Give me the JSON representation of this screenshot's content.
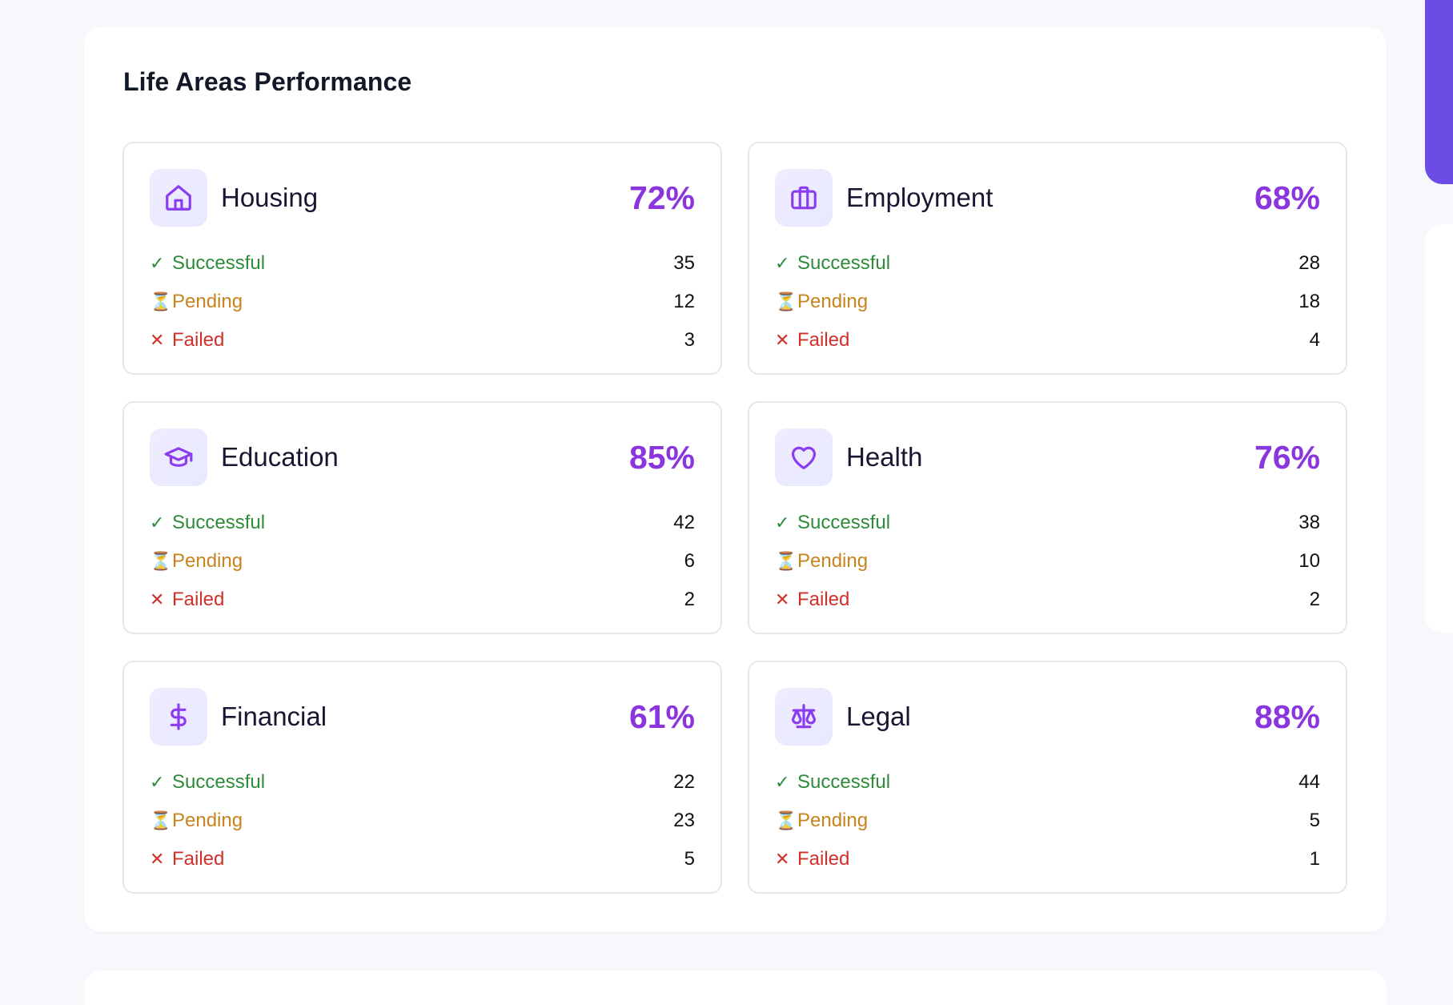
{
  "panel": {
    "title": "Life Areas Performance"
  },
  "labels": {
    "successful": "Successful",
    "pending": "Pending",
    "failed": "Failed"
  },
  "glyphs": {
    "successful": "✓",
    "pending": "⏳",
    "failed": "✕"
  },
  "areas": [
    {
      "name": "Housing",
      "icon": "house-icon",
      "percent": "72%",
      "successful": "35",
      "pending": "12",
      "failed": "3"
    },
    {
      "name": "Employment",
      "icon": "briefcase-icon",
      "percent": "68%",
      "successful": "28",
      "pending": "18",
      "failed": "4"
    },
    {
      "name": "Education",
      "icon": "graduation-cap-icon",
      "percent": "85%",
      "successful": "42",
      "pending": "6",
      "failed": "2"
    },
    {
      "name": "Health",
      "icon": "heart-icon",
      "percent": "76%",
      "successful": "38",
      "pending": "10",
      "failed": "2"
    },
    {
      "name": "Financial",
      "icon": "dollar-icon",
      "percent": "61%",
      "successful": "22",
      "pending": "23",
      "failed": "5"
    },
    {
      "name": "Legal",
      "icon": "scale-icon",
      "percent": "88%",
      "successful": "44",
      "pending": "5",
      "failed": "1"
    }
  ],
  "colors": {
    "accent": "#8a35dd",
    "success": "#2e8b3a",
    "pending": "#c7841c",
    "failed": "#d2302a",
    "sidebar_accent": "#6b4de6"
  }
}
